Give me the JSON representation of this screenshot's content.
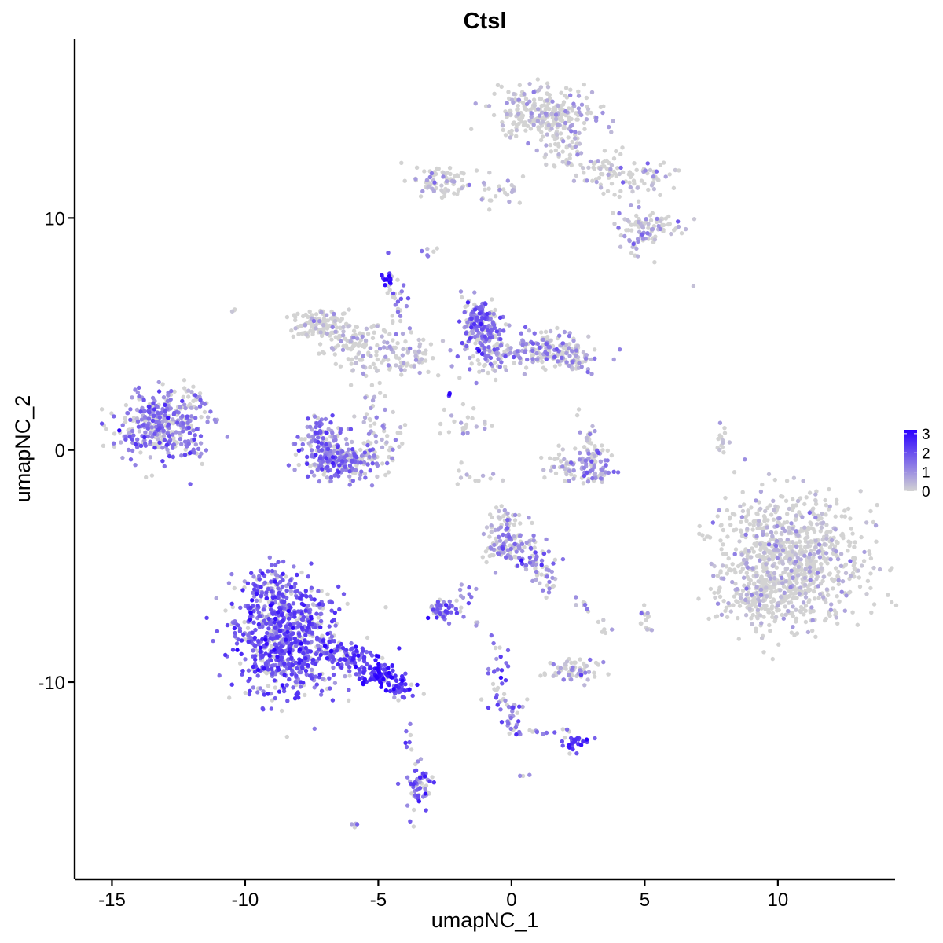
{
  "chart_data": {
    "type": "scatter",
    "title": "Ctsl",
    "xlabel": "umapNC_1",
    "ylabel": "umapNC_2",
    "xlim": [
      -16.4,
      14.4
    ],
    "ylim": [
      -18.5,
      17.7
    ],
    "x_ticks": [
      -15,
      -10,
      -5,
      0,
      5,
      10
    ],
    "x_tick_labels": [
      "-15",
      "-10",
      "-5",
      "0",
      "5",
      "10"
    ],
    "y_ticks": [
      -10,
      0,
      10
    ],
    "y_tick_labels": [
      "-10",
      "0",
      "10"
    ],
    "color_scale": {
      "low": "#d3d3d3",
      "high": "#2a00ff",
      "min": 0,
      "max": 3.2
    },
    "legend": {
      "position": "right",
      "labels": [
        "3",
        "2",
        "1",
        "0"
      ],
      "values": [
        3,
        2,
        1,
        0
      ]
    },
    "grid": false,
    "clusters": [
      {
        "cx": -13.2,
        "cy": 1.1,
        "sx": 0.85,
        "sy": 0.7,
        "n": 320,
        "expr": 1.3
      },
      {
        "cx": -12.3,
        "cy": 0.2,
        "sx": 0.5,
        "sy": 0.3,
        "n": 40,
        "expr": 1.5
      },
      {
        "cx": -12.0,
        "cy": 1.8,
        "sx": 0.35,
        "sy": 0.5,
        "n": 25,
        "expr": 0.8
      },
      {
        "cx": -8.5,
        "cy": -8.3,
        "sx": 1.0,
        "sy": 1.2,
        "n": 700,
        "expr": 1.85
      },
      {
        "cx": -8.9,
        "cy": -6.2,
        "sx": 0.5,
        "sy": 0.6,
        "n": 120,
        "expr": 1.7
      },
      {
        "cx": -6.2,
        "cy": -8.9,
        "sx": 0.6,
        "sy": 0.3,
        "n": 90,
        "expr": 2.1
      },
      {
        "cx": -5.0,
        "cy": -9.7,
        "sx": 0.4,
        "sy": 0.25,
        "n": 80,
        "expr": 2.6
      },
      {
        "cx": -4.2,
        "cy": -10.2,
        "sx": 0.35,
        "sy": 0.2,
        "n": 40,
        "expr": 2.1
      },
      {
        "cx": -7.6,
        "cy": -7.5,
        "sx": 0.4,
        "sy": 0.4,
        "n": 40,
        "expr": 1.3
      },
      {
        "cx": -6.4,
        "cy": -0.5,
        "sx": 0.7,
        "sy": 0.4,
        "n": 220,
        "expr": 1.35
      },
      {
        "cx": -7.1,
        "cy": 0.6,
        "sx": 0.4,
        "sy": 0.5,
        "n": 90,
        "expr": 1.4
      },
      {
        "cx": -4.9,
        "cy": 0.9,
        "sx": 0.4,
        "sy": 0.8,
        "n": 60,
        "expr": 0.7
      },
      {
        "cx": -7.1,
        "cy": 5.4,
        "sx": 0.5,
        "sy": 0.3,
        "n": 120,
        "expr": 0.15
      },
      {
        "cx": -5.6,
        "cy": 4.3,
        "sx": 0.8,
        "sy": 0.5,
        "n": 110,
        "expr": 0.2
      },
      {
        "cx": -3.9,
        "cy": 4.0,
        "sx": 0.6,
        "sy": 0.4,
        "n": 60,
        "expr": 0.3
      },
      {
        "cx": -4.3,
        "cy": 6.3,
        "sx": 0.2,
        "sy": 0.8,
        "n": 30,
        "expr": 1.3
      },
      {
        "cx": -4.6,
        "cy": 7.4,
        "sx": 0.15,
        "sy": 0.15,
        "n": 14,
        "expr": 2.7
      },
      {
        "cx": -1.2,
        "cy": 5.6,
        "sx": 0.35,
        "sy": 0.5,
        "n": 130,
        "expr": 1.5
      },
      {
        "cx": -0.9,
        "cy": 4.3,
        "sx": 0.5,
        "sy": 0.6,
        "n": 110,
        "expr": 1.2
      },
      {
        "cx": 1.2,
        "cy": 4.3,
        "sx": 0.8,
        "sy": 0.4,
        "n": 150,
        "expr": 0.9
      },
      {
        "cx": 2.4,
        "cy": 3.9,
        "sx": 0.35,
        "sy": 0.3,
        "n": 50,
        "expr": 0.6
      },
      {
        "cx": -1.8,
        "cy": 1.2,
        "sx": 0.45,
        "sy": 0.4,
        "n": 25,
        "expr": 0.5
      },
      {
        "cx": -2.3,
        "cy": 2.4,
        "sx": 0.05,
        "sy": 0.05,
        "n": 3,
        "expr": 3.0
      },
      {
        "cx": 1.3,
        "cy": 14.4,
        "sx": 0.9,
        "sy": 0.6,
        "n": 250,
        "expr": 0.35
      },
      {
        "cx": 2.0,
        "cy": 13.2,
        "sx": 0.5,
        "sy": 0.6,
        "n": 60,
        "expr": 0.3
      },
      {
        "cx": 3.5,
        "cy": 12.0,
        "sx": 0.6,
        "sy": 0.4,
        "n": 60,
        "expr": 0.25
      },
      {
        "cx": 5.1,
        "cy": 11.6,
        "sx": 0.5,
        "sy": 0.4,
        "n": 40,
        "expr": 0.3
      },
      {
        "cx": 5.2,
        "cy": 9.6,
        "sx": 0.6,
        "sy": 0.4,
        "n": 80,
        "expr": 0.45
      },
      {
        "cx": 4.6,
        "cy": 9.0,
        "sx": 0.3,
        "sy": 0.3,
        "n": 20,
        "expr": 0.6
      },
      {
        "cx": -2.5,
        "cy": 11.5,
        "sx": 0.6,
        "sy": 0.35,
        "n": 80,
        "expr": 0.15
      },
      {
        "cx": -0.5,
        "cy": 11.2,
        "sx": 0.8,
        "sy": 0.3,
        "n": 25,
        "expr": 0.2
      },
      {
        "cx": 10.5,
        "cy": -4.8,
        "sx": 1.3,
        "sy": 1.4,
        "n": 900,
        "expr": 0.17
      },
      {
        "cx": 9.0,
        "cy": -6.3,
        "sx": 0.6,
        "sy": 0.5,
        "n": 90,
        "expr": 0.15
      },
      {
        "cx": 7.9,
        "cy": 0.3,
        "sx": 0.08,
        "sy": 0.35,
        "n": 14,
        "expr": 0.0
      },
      {
        "cx": -0.2,
        "cy": -4.0,
        "sx": 0.45,
        "sy": 0.5,
        "n": 110,
        "expr": 1.1
      },
      {
        "cx": 0.9,
        "cy": -4.6,
        "sx": 0.4,
        "sy": 0.4,
        "n": 40,
        "expr": 1.2
      },
      {
        "cx": -0.2,
        "cy": -2.9,
        "sx": 0.4,
        "sy": 0.2,
        "n": 25,
        "expr": 0.3
      },
      {
        "cx": 1.3,
        "cy": -5.7,
        "sx": 0.25,
        "sy": 0.35,
        "n": 20,
        "expr": 1.4
      },
      {
        "cx": 2.8,
        "cy": -0.9,
        "sx": 0.5,
        "sy": 0.3,
        "n": 70,
        "expr": 1.0
      },
      {
        "cx": 3.2,
        "cy": -0.3,
        "sx": 0.3,
        "sy": 0.3,
        "n": 30,
        "expr": 0.5
      },
      {
        "cx": 2.9,
        "cy": 0.7,
        "sx": 0.2,
        "sy": 0.5,
        "n": 20,
        "expr": 0.7
      },
      {
        "cx": 1.9,
        "cy": -0.6,
        "sx": 0.35,
        "sy": 0.3,
        "n": 20,
        "expr": 0.2
      },
      {
        "cx": -2.6,
        "cy": -6.9,
        "sx": 0.3,
        "sy": 0.25,
        "n": 50,
        "expr": 1.6
      },
      {
        "cx": -1.7,
        "cy": -6.3,
        "sx": 0.25,
        "sy": 0.3,
        "n": 10,
        "expr": 1.2
      },
      {
        "cx": 2.4,
        "cy": -9.5,
        "sx": 0.55,
        "sy": 0.25,
        "n": 60,
        "expr": 0.7
      },
      {
        "cx": 2.7,
        "cy": -6.7,
        "sx": 0.18,
        "sy": 0.12,
        "n": 8,
        "expr": 1.0
      },
      {
        "cx": -0.6,
        "cy": -10.1,
        "sx": 0.2,
        "sy": 0.7,
        "n": 35,
        "expr": 1.6
      },
      {
        "cx": 0.1,
        "cy": -11.6,
        "sx": 0.25,
        "sy": 0.45,
        "n": 30,
        "expr": 1.5
      },
      {
        "cx": 2.3,
        "cy": -12.6,
        "sx": 0.3,
        "sy": 0.2,
        "n": 30,
        "expr": 2.0
      },
      {
        "cx": 1.1,
        "cy": -12.1,
        "sx": 0.7,
        "sy": 0.15,
        "n": 10,
        "expr": 1.4
      },
      {
        "cx": -3.5,
        "cy": -14.6,
        "sx": 0.25,
        "sy": 0.6,
        "n": 60,
        "expr": 1.6
      },
      {
        "cx": -3.9,
        "cy": -12.3,
        "sx": 0.1,
        "sy": 0.4,
        "n": 8,
        "expr": 1.9
      },
      {
        "cx": 5.0,
        "cy": -7.4,
        "sx": 0.15,
        "sy": 0.3,
        "n": 14,
        "expr": 0.4
      },
      {
        "cx": 3.4,
        "cy": -7.7,
        "sx": 0.15,
        "sy": 0.2,
        "n": 6,
        "expr": 0.6
      },
      {
        "cx": -3.0,
        "cy": 8.5,
        "sx": 0.2,
        "sy": 0.15,
        "n": 6,
        "expr": 0.8
      },
      {
        "cx": -5.9,
        "cy": -16.2,
        "sx": 0.15,
        "sy": 0.1,
        "n": 5,
        "expr": 1.1
      },
      {
        "cx": -10.5,
        "cy": 6.0,
        "sx": 0.08,
        "sy": 0.08,
        "n": 3,
        "expr": 0.3
      },
      {
        "cx": 6.8,
        "cy": 7.1,
        "sx": 0.05,
        "sy": 0.05,
        "n": 1,
        "expr": 0.6
      },
      {
        "cx": -1.4,
        "cy": -7.5,
        "sx": 0.15,
        "sy": 0.15,
        "n": 3,
        "expr": 0.5
      },
      {
        "cx": -1.5,
        "cy": -1.2,
        "sx": 0.6,
        "sy": 0.25,
        "n": 12,
        "expr": 0.3
      },
      {
        "cx": 0.6,
        "cy": -14.0,
        "sx": 0.1,
        "sy": 0.1,
        "n": 3,
        "expr": 0.8
      }
    ]
  }
}
